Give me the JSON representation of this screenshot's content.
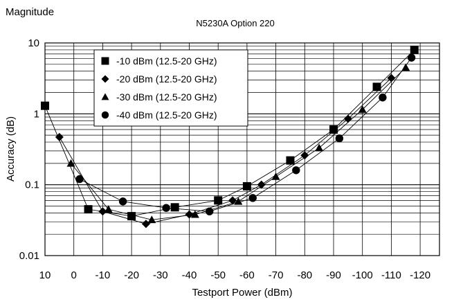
{
  "chart_data": {
    "type": "scatter",
    "corner_label": "Magnitude",
    "title": "N5230A Option 220",
    "xlabel": "Testport Power (dBm)",
    "ylabel": "Accuracy (dB)",
    "y_scale": "log",
    "xlim": [
      10,
      -120
    ],
    "ylim": [
      0.01,
      10
    ],
    "x_ticks": [
      10,
      0,
      -10,
      -20,
      -30,
      -40,
      -50,
      -60,
      -70,
      -80,
      -90,
      -100,
      -110,
      -120
    ],
    "x_tick_labels": [
      "10",
      "0",
      "-10",
      "-20",
      "-30",
      "-40",
      "-50",
      "-60",
      "-70",
      "-80",
      "-90",
      "-100",
      "-110",
      "-120"
    ],
    "y_ticks": [
      0.01,
      0.1,
      1,
      10
    ],
    "y_tick_labels": [
      "0.01",
      "0.1",
      "1",
      "10"
    ],
    "grid": true,
    "legend_position": "top-left",
    "series": [
      {
        "name": "-10 dBm (12.5-20 GHz)",
        "marker": "square",
        "x": [
          10,
          -5,
          -20,
          -35,
          -50,
          -60,
          -75,
          -90,
          -105,
          -118
        ],
        "y": [
          1.3,
          0.045,
          0.036,
          0.048,
          0.06,
          0.095,
          0.22,
          0.6,
          2.4,
          8.0
        ]
      },
      {
        "name": "-20 dBm (12.5-20 GHz)",
        "marker": "diamond",
        "x": [
          5,
          -10,
          -25,
          -40,
          -55,
          -65,
          -80,
          -95,
          -110
        ],
        "y": [
          0.47,
          0.042,
          0.028,
          0.038,
          0.06,
          0.1,
          0.26,
          0.85,
          3.2
        ]
      },
      {
        "name": "-30 dBm (12.5-20 GHz)",
        "marker": "triangle",
        "x": [
          1,
          -12,
          -27,
          -42,
          -57,
          -70,
          -85,
          -100,
          -115
        ],
        "y": [
          0.2,
          0.045,
          0.032,
          0.038,
          0.058,
          0.13,
          0.33,
          1.15,
          4.5
        ]
      },
      {
        "name": "-40 dBm (12.5-20 GHz)",
        "marker": "circle",
        "x": [
          -2,
          -17,
          -32,
          -47,
          -62,
          -77,
          -92,
          -107,
          -117
        ],
        "y": [
          0.12,
          0.058,
          0.047,
          0.042,
          0.065,
          0.16,
          0.45,
          1.7,
          6.2
        ]
      }
    ]
  }
}
